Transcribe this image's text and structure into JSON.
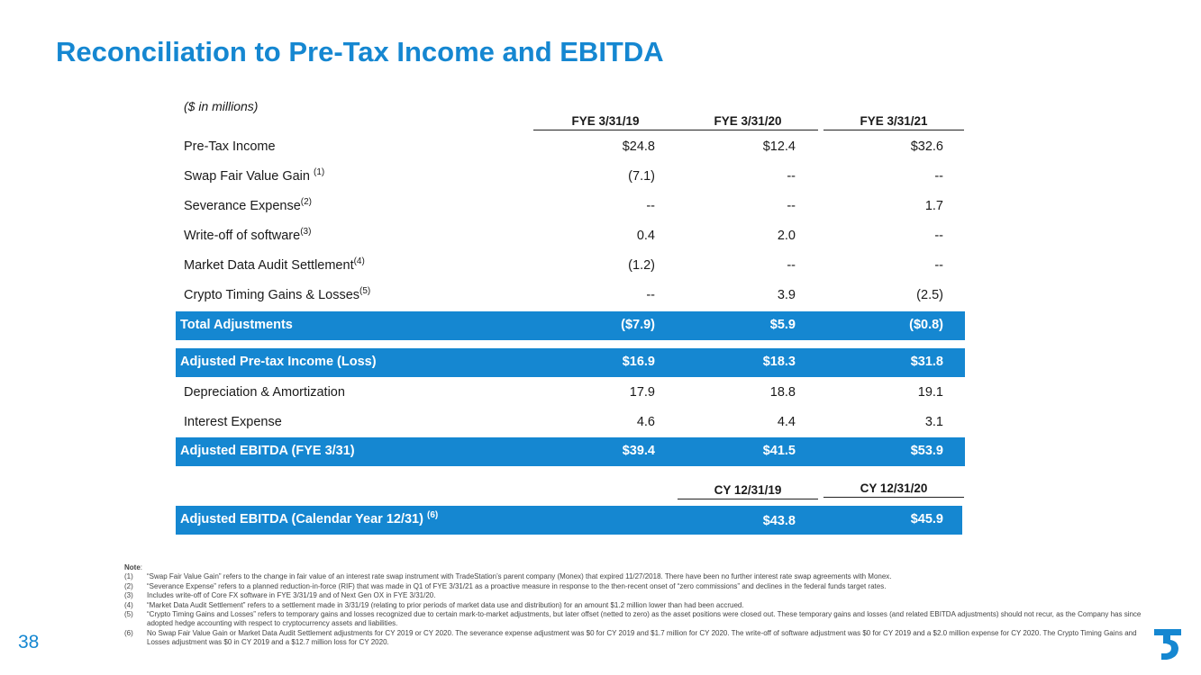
{
  "title": "Reconciliation to Pre-Tax Income and EBITDA",
  "units": "($ in millions)",
  "columns": [
    "FYE 3/31/19",
    "FYE 3/31/20",
    "FYE 3/31/21"
  ],
  "rows": [
    {
      "label": "Pre-Tax Income",
      "sup": "",
      "values": [
        "$24.8",
        "$12.4",
        "$32.6"
      ]
    },
    {
      "label": "Swap Fair Value Gain",
      "sup": "(1)",
      "values": [
        "(7.1)",
        "--",
        "--"
      ]
    },
    {
      "label": "Severance Expense",
      "sup": "(2)",
      "values": [
        "--",
        "--",
        "1.7"
      ]
    },
    {
      "label": "Write-off of software",
      "sup": "(3)",
      "values": [
        "0.4",
        "2.0",
        "--"
      ]
    },
    {
      "label": "Market Data Audit Settlement",
      "sup": "(4)",
      "values": [
        "(1.2)",
        "--",
        "--"
      ]
    },
    {
      "label": "Crypto Timing Gains & Losses",
      "sup": "(5)",
      "values": [
        "--",
        "3.9",
        "(2.5)"
      ]
    },
    {
      "label": "Total Adjustments",
      "sup": "",
      "values": [
        "($7.9)",
        "$5.9",
        "($0.8)"
      ],
      "highlight": true
    },
    {
      "label": "Adjusted Pre-tax Income (Loss)",
      "sup": "",
      "values": [
        "$16.9",
        "$18.3",
        "$31.8"
      ],
      "highlight": true
    },
    {
      "label": "Depreciation & Amortization",
      "sup": "",
      "values": [
        "17.9",
        "18.8",
        "19.1"
      ]
    },
    {
      "label": "Interest Expense",
      "sup": "",
      "values": [
        "4.6",
        "4.4",
        "3.1"
      ]
    },
    {
      "label": "Adjusted EBITDA (FYE 3/31)",
      "sup": "",
      "values": [
        "$39.4",
        "$41.5",
        "$53.9"
      ],
      "highlight": true
    }
  ],
  "cy_columns": [
    "CY 12/31/19",
    "CY 12/31/20"
  ],
  "cy_row": {
    "label": "Adjusted EBITDA (Calendar Year 12/31)",
    "sup": "(6)",
    "values": [
      "$43.8",
      "$45.9"
    ]
  },
  "note_label": "Note",
  "footnotes": [
    {
      "num": "(1)",
      "text": "“Swap Fair Value Gain” refers to the change in fair value of an interest rate swap instrument with TradeStation’s parent company (Monex) that expired 11/27/2018. There have been no further interest rate swap agreements with Monex."
    },
    {
      "num": "(2)",
      "text": "“Severance Expense” refers to a planned reduction-in-force (RIF) that was made in Q1 of FYE 3/31/21 as a proactive measure in response to the then-recent onset of “zero commissions” and declines in the federal funds target rates."
    },
    {
      "num": "(3)",
      "text": "Includes write-off of Core FX software in FYE 3/31/19 and of Next Gen OX in FYE 3/31/20."
    },
    {
      "num": "(4)",
      "text": "“Market Data Audit Settlement” refers to a settlement made in 3/31/19 (relating to prior periods of market data use and distribution) for an amount $1.2 million lower than had been accrued."
    },
    {
      "num": "(5)",
      "text": "“Crypto Timing Gains and Losses” refers to temporary gains and losses recognized due to certain mark-to-market adjustments, but later offset (netted to zero) as the asset positions were closed out. These temporary gains and losses (and related EBITDA adjustments) should not recur, as the Company has since adopted hedge accounting with respect to cryptocurrency assets and liabilities."
    },
    {
      "num": "(6)",
      "text": "No Swap Fair Value Gain or Market Data Audit Settlement adjustments for CY 2019 or CY 2020. The severance expense adjustment was $0 for CY 2019 and $1.7 million for CY 2020. The write-off of software adjustment was $0 for CY 2019 and a $2.0 million expense for CY 2020. The Crypto Timing Gains and Losses adjustment was $0 in CY 2019 and a $12.7 million loss for CY 2020."
    }
  ],
  "page_number": "38",
  "colors": {
    "accent": "#1587d1"
  }
}
